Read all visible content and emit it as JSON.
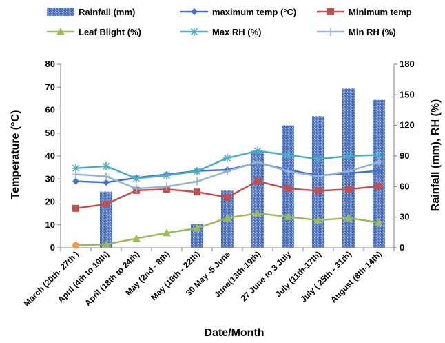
{
  "chart_data": {
    "type": "bar",
    "title": "",
    "xlabel": "Date/Month",
    "ylabel_left": "Temperature (°C)",
    "ylabel_right": "Rainfall (mm), RH (%)",
    "ylim_left": [
      0,
      80
    ],
    "ylim_right": [
      0,
      180
    ],
    "yticks_left": [
      "0",
      "10",
      "20",
      "30",
      "40",
      "50",
      "60",
      "70",
      "80"
    ],
    "yticks_right": [
      "0",
      "30",
      "60",
      "90",
      "120",
      "150",
      "180"
    ],
    "grid": false,
    "legend_position": "top",
    "categories": [
      "March (20th- 27th )",
      "April (4th to 10th)",
      "April (18th  to 24th)",
      "May (2nd - 8th)",
      "May (16th - 22th)",
      "30 May -5 June",
      "June(13th-19th)",
      "27 June to 3 July",
      "July (11th-17th)",
      "July ( 25th - 31th)",
      "August (8th-14th)"
    ],
    "series": [
      {
        "name": "Rainfall (mm)",
        "type": "bar",
        "axis": "right",
        "color": "#4a6fc4",
        "values": [
          0,
          55,
          0,
          0,
          23,
          56,
          95,
          120,
          129,
          156,
          145
        ]
      },
      {
        "name": "maximum temp (°C)",
        "type": "line",
        "axis": "left",
        "marker": "diamond",
        "color": "#4472c4",
        "values": [
          29,
          28.5,
          30.5,
          32,
          33.5,
          34,
          37,
          34,
          31.5,
          32.5,
          33.5
        ]
      },
      {
        "name": "Minimum temp",
        "type": "line",
        "axis": "left",
        "marker": "square",
        "color": "#c0504d",
        "values": [
          17.2,
          19,
          25,
          25.5,
          24.3,
          22,
          29,
          25.8,
          24.8,
          25.5,
          26.8
        ]
      },
      {
        "name": "Leaf Blight (%)",
        "type": "line",
        "axis": "left",
        "marker": "triangle",
        "color": "#9bbb59",
        "values": [
          1,
          1.5,
          4,
          6.5,
          8.5,
          13,
          15,
          13.5,
          12,
          13,
          11
        ]
      },
      {
        "name": "Max RH (%)",
        "type": "line",
        "axis": "right",
        "marker": "star",
        "color": "#4bacc6",
        "values": [
          78,
          80,
          68,
          71,
          75,
          88,
          95,
          91,
          87,
          90,
          91
        ]
      },
      {
        "name": "Min RH (%)",
        "type": "line",
        "axis": "right",
        "marker": "plus",
        "color": "#95b3d7",
        "values": [
          72,
          70,
          58,
          60,
          65,
          75,
          84,
          75,
          70,
          75,
          84
        ]
      }
    ],
    "annotations": [
      {
        "series": "Leaf Blight (%)",
        "category_index": 0,
        "color": "#f79646"
      }
    ]
  }
}
